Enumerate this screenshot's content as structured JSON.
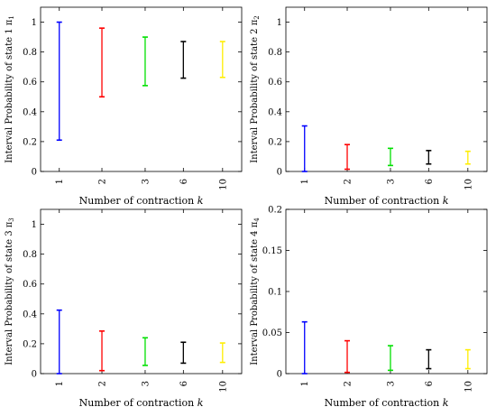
{
  "chart_data": [
    {
      "type": "interval",
      "ylabel": "Interval Probability of state 1 π",
      "ylabel_sub": "1",
      "xlabel": "Number of contraction ",
      "xlabel_var": "k",
      "categories": [
        "1",
        "2",
        "3",
        "6",
        "10"
      ],
      "lower": [
        0.21,
        0.5,
        0.575,
        0.625,
        0.63
      ],
      "upper": [
        1.0,
        0.96,
        0.9,
        0.87,
        0.87
      ],
      "ylim": [
        0,
        1.1
      ],
      "yticks": [
        0,
        0.2,
        0.4,
        0.6,
        0.8,
        1
      ],
      "ytick_labels": [
        "0",
        "0.2",
        "0.4",
        "0.6",
        "0.8",
        "1"
      ],
      "colors": [
        "#0000ff",
        "#ff0000",
        "#00e000",
        "#000000",
        "#ffee00"
      ]
    },
    {
      "type": "interval",
      "ylabel": "Interval Probability of state 2 π",
      "ylabel_sub": "2",
      "xlabel": "Number of contraction ",
      "xlabel_var": "k",
      "categories": [
        "1",
        "2",
        "3",
        "6",
        "10"
      ],
      "lower": [
        0.0,
        0.015,
        0.04,
        0.05,
        0.05
      ],
      "upper": [
        0.305,
        0.18,
        0.155,
        0.14,
        0.135
      ],
      "ylim": [
        0,
        1.1
      ],
      "yticks": [
        0,
        0.2,
        0.4,
        0.6,
        0.8,
        1
      ],
      "ytick_labels": [
        "0",
        "0.2",
        "0.4",
        "0.6",
        "0.8",
        "1"
      ],
      "colors": [
        "#0000ff",
        "#ff0000",
        "#00e000",
        "#000000",
        "#ffee00"
      ]
    },
    {
      "type": "interval",
      "ylabel": "Interval Probability of state 3 π",
      "ylabel_sub": "3",
      "xlabel": "Number of contraction ",
      "xlabel_var": "k",
      "categories": [
        "1",
        "2",
        "3",
        "6",
        "10"
      ],
      "lower": [
        0.0,
        0.02,
        0.055,
        0.07,
        0.075
      ],
      "upper": [
        0.425,
        0.285,
        0.24,
        0.21,
        0.205
      ],
      "ylim": [
        0,
        1.1
      ],
      "yticks": [
        0,
        0.2,
        0.4,
        0.6,
        0.8,
        1
      ],
      "ytick_labels": [
        "0",
        "0.2",
        "0.4",
        "0.6",
        "0.8",
        "1"
      ],
      "colors": [
        "#0000ff",
        "#ff0000",
        "#00e000",
        "#000000",
        "#ffee00"
      ]
    },
    {
      "type": "interval",
      "ylabel": "Interval Probability of state 4 π",
      "ylabel_sub": "4",
      "xlabel": "Number of contraction ",
      "xlabel_var": "k",
      "categories": [
        "1",
        "2",
        "3",
        "6",
        "10"
      ],
      "lower": [
        0.0,
        0.0015,
        0.004,
        0.006,
        0.006
      ],
      "upper": [
        0.063,
        0.04,
        0.034,
        0.029,
        0.029
      ],
      "ylim": [
        0,
        0.2
      ],
      "yticks": [
        0,
        0.05,
        0.1,
        0.15,
        0.2
      ],
      "ytick_labels": [
        "0",
        "0.05",
        "0.1",
        "0.15",
        "0.2"
      ],
      "colors": [
        "#0000ff",
        "#ff0000",
        "#00e000",
        "#000000",
        "#ffee00"
      ]
    }
  ]
}
